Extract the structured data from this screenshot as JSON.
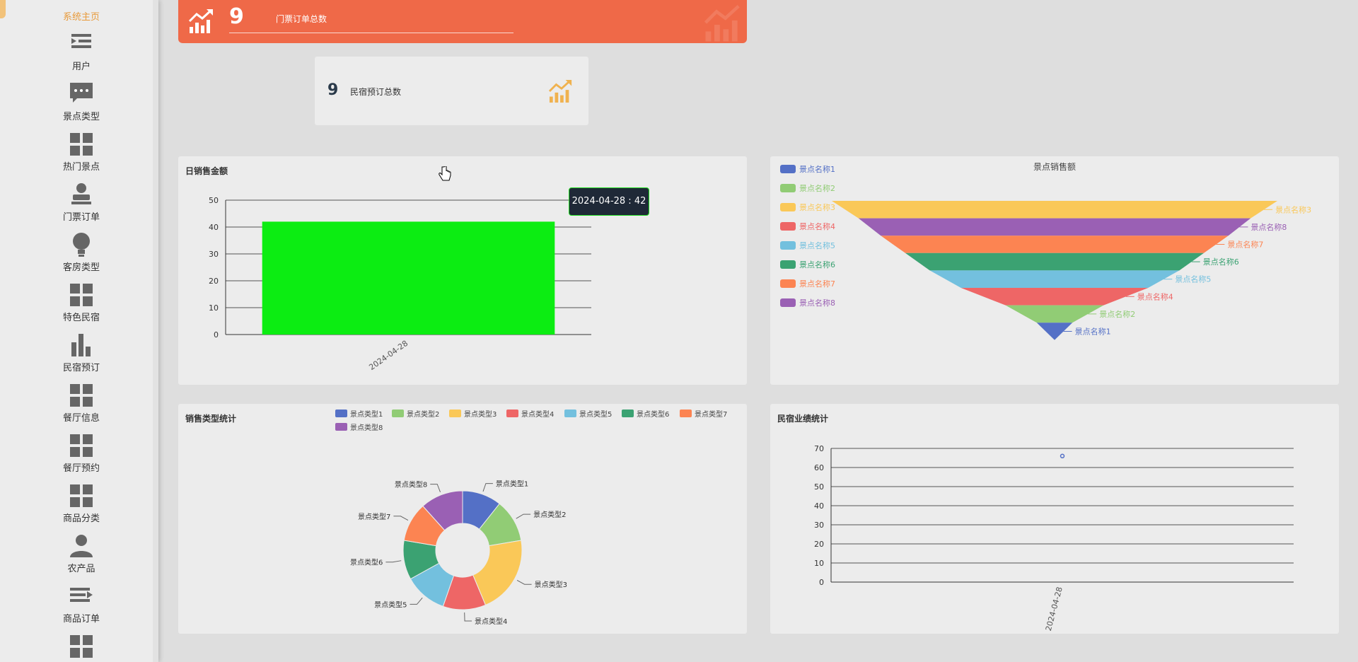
{
  "sidebar": {
    "items": [
      {
        "label": "系统主页",
        "icon": "home-icon"
      },
      {
        "label": "用户",
        "icon": "list-indent-icon"
      },
      {
        "label": "景点类型",
        "icon": "chat-bubble-icon"
      },
      {
        "label": "热门景点",
        "icon": "grid-icon"
      },
      {
        "label": "门票订单",
        "icon": "person-icon"
      },
      {
        "label": "客房类型",
        "icon": "lightbulb-icon"
      },
      {
        "label": "特色民宿",
        "icon": "grid-icon"
      },
      {
        "label": "民宿预订",
        "icon": "bar-chart-icon"
      },
      {
        "label": "餐厅信息",
        "icon": "grid-icon"
      },
      {
        "label": "餐厅预约",
        "icon": "grid-icon"
      },
      {
        "label": "商品分类",
        "icon": "grid-icon"
      },
      {
        "label": "农产品",
        "icon": "user-icon"
      },
      {
        "label": "商品订单",
        "icon": "list-arrow-icon"
      },
      {
        "label": "",
        "icon": "grid-icon"
      }
    ]
  },
  "stats": {
    "ticket_orders": {
      "value": "9",
      "label": "门票订单总数",
      "icon": "trend-chart-icon",
      "color": "#ef6948"
    },
    "homestay_bookings": {
      "value": "9",
      "label": "民宿预订总数",
      "icon": "trend-chart-icon",
      "color": "#f0b24f"
    }
  },
  "panels": {
    "daily_sales": {
      "title": "日销售金额"
    },
    "spot_sales": {
      "title": "景点销售额"
    },
    "sales_type": {
      "title": "销售类型统计"
    },
    "homestay_perf": {
      "title": "民宿业绩统计"
    }
  },
  "tooltip": {
    "text": "2024-04-28 : 42"
  },
  "colors": [
    "#5470c6",
    "#91cc75",
    "#fac858",
    "#ee6666",
    "#73c0de",
    "#3ba272",
    "#fc8452",
    "#9a60b4"
  ],
  "chart_data": [
    {
      "type": "bar",
      "title": "日销售金额",
      "categories": [
        "2024-04-28"
      ],
      "values": [
        42
      ],
      "ylim": [
        0,
        50
      ],
      "yticks": [
        0,
        10,
        20,
        30,
        40,
        50
      ],
      "bar_color": "#0ced12",
      "grid": true
    },
    {
      "type": "funnel",
      "title": "景点销售额",
      "legend_position": "left",
      "series": [
        {
          "name": "景点名称3",
          "value": 100
        },
        {
          "name": "景点名称8",
          "value": 88
        },
        {
          "name": "景点名称7",
          "value": 78
        },
        {
          "name": "景点名称6",
          "value": 67
        },
        {
          "name": "景点名称5",
          "value": 56
        },
        {
          "name": "景点名称4",
          "value": 42
        },
        {
          "name": "景点名称2",
          "value": 22
        },
        {
          "name": "景点名称1",
          "value": 8
        }
      ],
      "legend": [
        "景点名称1",
        "景点名称2",
        "景点名称3",
        "景点名称4",
        "景点名称5",
        "景点名称6",
        "景点名称7",
        "景点名称8"
      ]
    },
    {
      "type": "pie",
      "title": "销售类型统计",
      "donut": true,
      "legend_position": "top",
      "legend": [
        "景点类型1",
        "景点类型2",
        "景点类型3",
        "景点类型4",
        "景点类型5",
        "景点类型6",
        "景点类型7",
        "景点类型8"
      ],
      "slices": [
        {
          "name": "景点类型1",
          "value": 11
        },
        {
          "name": "景点类型2",
          "value": 12
        },
        {
          "name": "景点类型3",
          "value": 22
        },
        {
          "name": "景点类型4",
          "value": 12
        },
        {
          "name": "景点类型5",
          "value": 12
        },
        {
          "name": "景点类型6",
          "value": 11
        },
        {
          "name": "景点类型7",
          "value": 11
        },
        {
          "name": "景点类型8",
          "value": 12
        }
      ]
    },
    {
      "type": "scatter",
      "title": "民宿业绩统计",
      "x": [
        "2024-04-28"
      ],
      "y": [
        66
      ],
      "ylim": [
        0,
        70
      ],
      "yticks": [
        0,
        10,
        20,
        30,
        40,
        50,
        60,
        70
      ],
      "grid": true
    }
  ]
}
